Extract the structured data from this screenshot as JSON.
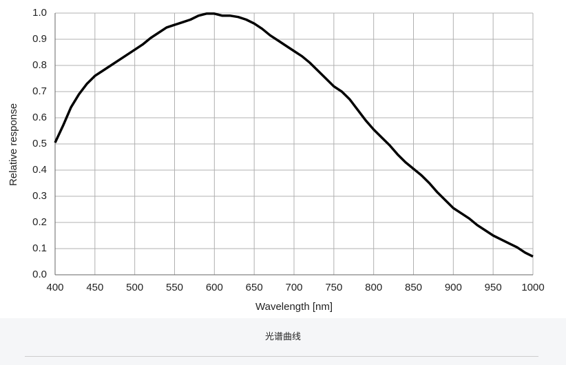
{
  "chart_data": {
    "type": "line",
    "x_label": "Wavelength  [nm]",
    "y_label": "Relative  response",
    "xlim": [
      400,
      1000
    ],
    "xticks": [
      400,
      450,
      500,
      550,
      600,
      650,
      700,
      750,
      800,
      850,
      900,
      950,
      1000
    ],
    "ylim": [
      0,
      1
    ],
    "yticks": [
      {
        "value": 0,
        "label": "0.0"
      },
      0.1,
      0.2,
      0.3,
      0.4,
      0.5,
      0.6,
      0.7,
      0.8,
      0.9,
      {
        "value": 1,
        "label": "1.0"
      }
    ],
    "grid": true,
    "series": [
      {
        "color": "#000000",
        "x": [
          400,
          410,
          420,
          430,
          440,
          450,
          460,
          470,
          480,
          490,
          500,
          510,
          520,
          530,
          540,
          550,
          560,
          570,
          580,
          590,
          600,
          610,
          620,
          630,
          640,
          650,
          660,
          670,
          680,
          690,
          700,
          710,
          720,
          730,
          740,
          750,
          760,
          770,
          780,
          790,
          800,
          810,
          820,
          830,
          840,
          850,
          860,
          870,
          880,
          890,
          900,
          910,
          920,
          930,
          940,
          950,
          960,
          970,
          980,
          990,
          1000
        ],
        "values": [
          0.505,
          0.57,
          0.64,
          0.69,
          0.73,
          0.76,
          0.78,
          0.8,
          0.82,
          0.84,
          0.86,
          0.88,
          0.905,
          0.925,
          0.945,
          0.955,
          0.965,
          0.975,
          0.99,
          0.998,
          0.998,
          0.99,
          0.99,
          0.985,
          0.975,
          0.96,
          0.94,
          0.915,
          0.895,
          0.875,
          0.855,
          0.835,
          0.81,
          0.78,
          0.75,
          0.72,
          0.7,
          0.67,
          0.63,
          0.59,
          0.555,
          0.525,
          0.495,
          0.46,
          0.43,
          0.405,
          0.38,
          0.35,
          0.315,
          0.285,
          0.255,
          0.235,
          0.215,
          0.19,
          0.17,
          0.15,
          0.135,
          0.12,
          0.105,
          0.085,
          0.07
        ]
      }
    ]
  },
  "caption": "光谱曲线"
}
